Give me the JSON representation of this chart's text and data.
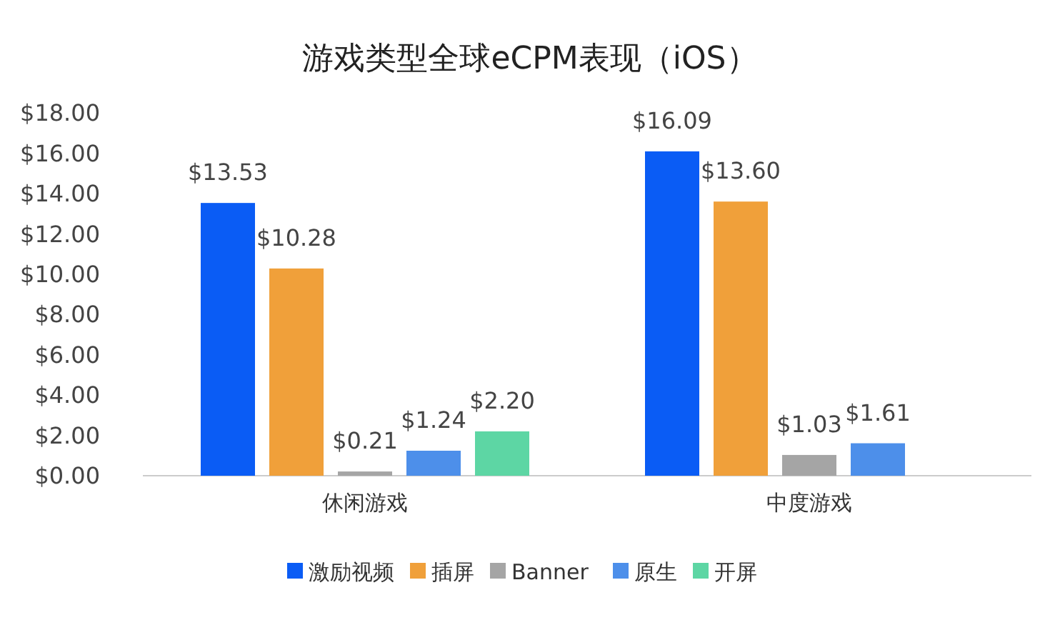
{
  "chart_data": {
    "type": "bar",
    "title": "游戏类型全球eCPM表现（iOS）",
    "categories": [
      "休闲游戏",
      "中度游戏"
    ],
    "series": [
      {
        "name": "激励视频",
        "color": "#0a5cf5",
        "values": [
          13.53,
          16.09
        ],
        "value_labels": [
          "$13.53",
          "$16.09"
        ]
      },
      {
        "name": "插屏",
        "color": "#f0a03a",
        "values": [
          10.28,
          13.6
        ],
        "value_labels": [
          "$10.28",
          "$13.60"
        ]
      },
      {
        "name": "Banner",
        "color": "#a5a5a5",
        "values": [
          0.21,
          1.03
        ],
        "value_labels": [
          "$0.21",
          "$1.03"
        ]
      },
      {
        "name": "原生",
        "color": "#4d8fea",
        "values": [
          1.24,
          1.61
        ],
        "value_labels": [
          "$1.24",
          "$1.61"
        ]
      },
      {
        "name": "开屏",
        "color": "#5dd6a4",
        "values": [
          2.2,
          null
        ],
        "value_labels": [
          "$2.20",
          null
        ]
      }
    ],
    "ylim": [
      0,
      18
    ],
    "yticks": [
      {
        "value": 0,
        "label": "$0.00"
      },
      {
        "value": 2,
        "label": "$2.00"
      },
      {
        "value": 4,
        "label": "$4.00"
      },
      {
        "value": 6,
        "label": "$6.00"
      },
      {
        "value": 8,
        "label": "$8.00"
      },
      {
        "value": 10,
        "label": "$10.00"
      },
      {
        "value": 12,
        "label": "$12.00"
      },
      {
        "value": 14,
        "label": "$14.00"
      },
      {
        "value": 16,
        "label": "$16.00"
      },
      {
        "value": 18,
        "label": "$18.00"
      }
    ],
    "grid": false,
    "legend": "bottom"
  }
}
